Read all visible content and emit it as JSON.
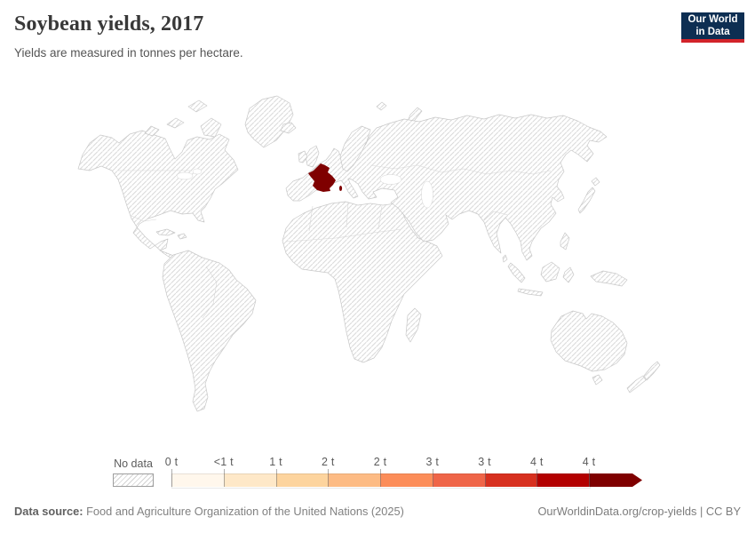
{
  "header": {
    "title": "Soybean yields, 2017",
    "subtitle": "Yields are measured in tonnes per hectare."
  },
  "logo": {
    "line1": "Our World",
    "line2": "in Data",
    "bg_color": "#0d2e52",
    "accent_color": "#d2232a"
  },
  "legend": {
    "no_data_label": "No data",
    "ticks": [
      "0 t",
      "<1 t",
      "1 t",
      "2 t",
      "2 t",
      "3 t",
      "3 t",
      "4 t",
      "4 t"
    ],
    "colors": [
      "#fff7ec",
      "#fee8c8",
      "#fdd49e",
      "#fdbb84",
      "#fc8d59",
      "#ef6548",
      "#d7301f",
      "#b30000",
      "#7f0000"
    ]
  },
  "map": {
    "highlighted_country": "France",
    "highlight_color": "#7f0000",
    "no_data_style": "hatched"
  },
  "footer": {
    "source_label": "Data source:",
    "source_text": "Food and Agriculture Organization of the United Nations (2025)",
    "attribution": "OurWorldinData.org/crop-yields | CC BY"
  },
  "chart_data": {
    "type": "choropleth_map",
    "title": "Soybean yields, 2017",
    "subtitle": "Yields are measured in tonnes per hectare.",
    "unit": "tonnes per hectare",
    "year": 2017,
    "legend_bins": [
      {
        "lower_label": "0 t",
        "color": "#fff7ec"
      },
      {
        "lower_label": "<1 t",
        "color": "#fee8c8"
      },
      {
        "lower_label": "1 t",
        "color": "#fdd49e"
      },
      {
        "lower_label": "2 t",
        "color": "#fdbb84"
      },
      {
        "lower_label": "2 t",
        "color": "#fc8d59"
      },
      {
        "lower_label": "3 t",
        "color": "#ef6548"
      },
      {
        "lower_label": "3 t",
        "color": "#d7301f"
      },
      {
        "lower_label": "4 t",
        "color": "#b30000"
      },
      {
        "lower_label": "4 t",
        "color": "#7f0000"
      }
    ],
    "no_data": {
      "label": "No data",
      "style": "hatched"
    },
    "values": [
      {
        "entity": "France",
        "bin": "4 t (darkest)",
        "color": "#7f0000"
      }
    ],
    "all_other_countries": "No data (hatched)"
  }
}
